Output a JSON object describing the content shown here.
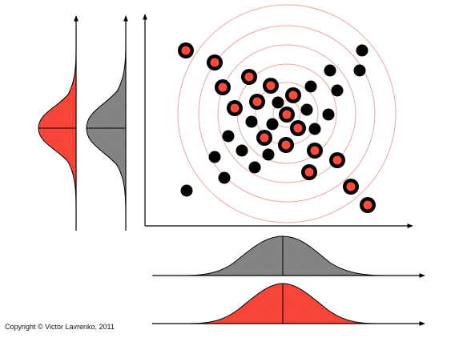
{
  "copyright": "Copyright © Victor Lavrenko, 2011",
  "colors": {
    "red_fill": "#ff4a3d",
    "gray_fill": "#8a8a8a",
    "ring": "#e8a79e",
    "axis": "#000000",
    "black_dot": "#000000"
  },
  "scatter": {
    "center": [
      358,
      142
    ],
    "ring_radii": [
      17,
      39,
      62,
      86,
      110,
      136
    ],
    "red_points": [
      [
        232,
        63
      ],
      [
        268,
        78
      ],
      [
        311,
        96
      ],
      [
        278,
        109
      ],
      [
        338,
        107
      ],
      [
        321,
        127
      ],
      [
        293,
        135
      ],
      [
        366,
        119
      ],
      [
        358,
        143
      ],
      [
        372,
        160
      ],
      [
        330,
        172
      ],
      [
        357,
        181
      ],
      [
        393,
        188
      ],
      [
        421,
        200
      ],
      [
        386,
        215
      ],
      [
        438,
        233
      ],
      [
        459,
        256
      ]
    ],
    "black_points": [
      [
        452,
        63
      ],
      [
        449,
        88
      ],
      [
        412,
        88
      ],
      [
        388,
        108
      ],
      [
        421,
        113
      ],
      [
        347,
        128
      ],
      [
        383,
        137
      ],
      [
        410,
        143
      ],
      [
        314,
        152
      ],
      [
        340,
        155
      ],
      [
        393,
        161
      ],
      [
        285,
        170
      ],
      [
        302,
        188
      ],
      [
        335,
        193
      ],
      [
        268,
        196
      ],
      [
        318,
        209
      ],
      [
        280,
        222
      ],
      [
        233,
        238
      ]
    ]
  }
}
